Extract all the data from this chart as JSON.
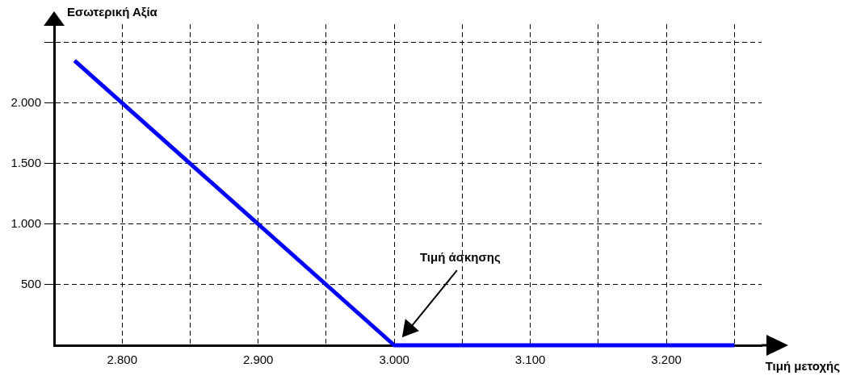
{
  "chart_data": {
    "type": "line",
    "xlabel": "Τιμή μετοχής",
    "ylabel": "Εσωτερική Αξία",
    "x": [
      2765,
      3000,
      3250
    ],
    "series": [
      {
        "color": "#0000ff",
        "values": [
          2350,
          0,
          0
        ]
      }
    ],
    "xlim": [
      2750,
      3270
    ],
    "ylim": [
      0,
      2650
    ],
    "xticks": [
      {
        "value": 2800,
        "label": "2.800"
      },
      {
        "value": 2850,
        "label": null
      },
      {
        "value": 2900,
        "label": "2.900"
      },
      {
        "value": 2950,
        "label": null
      },
      {
        "value": 3000,
        "label": "3.000"
      },
      {
        "value": 3050,
        "label": null
      },
      {
        "value": 3100,
        "label": "3.100"
      },
      {
        "value": 3150,
        "label": null
      },
      {
        "value": 3200,
        "label": "3.200"
      },
      {
        "value": 3250,
        "label": null
      }
    ],
    "yticks": [
      500,
      {
        "value": 1000,
        "label": "1.000"
      },
      {
        "value": 1500,
        "label": "1.500"
      },
      {
        "value": 2000,
        "label": "2.000"
      },
      {
        "value": 2500,
        "label": null
      }
    ],
    "annotations": [
      "Τιμή άσκησης"
    ],
    "grid": true,
    "legend": false,
    "marker": "none",
    "line_style": "solid"
  }
}
